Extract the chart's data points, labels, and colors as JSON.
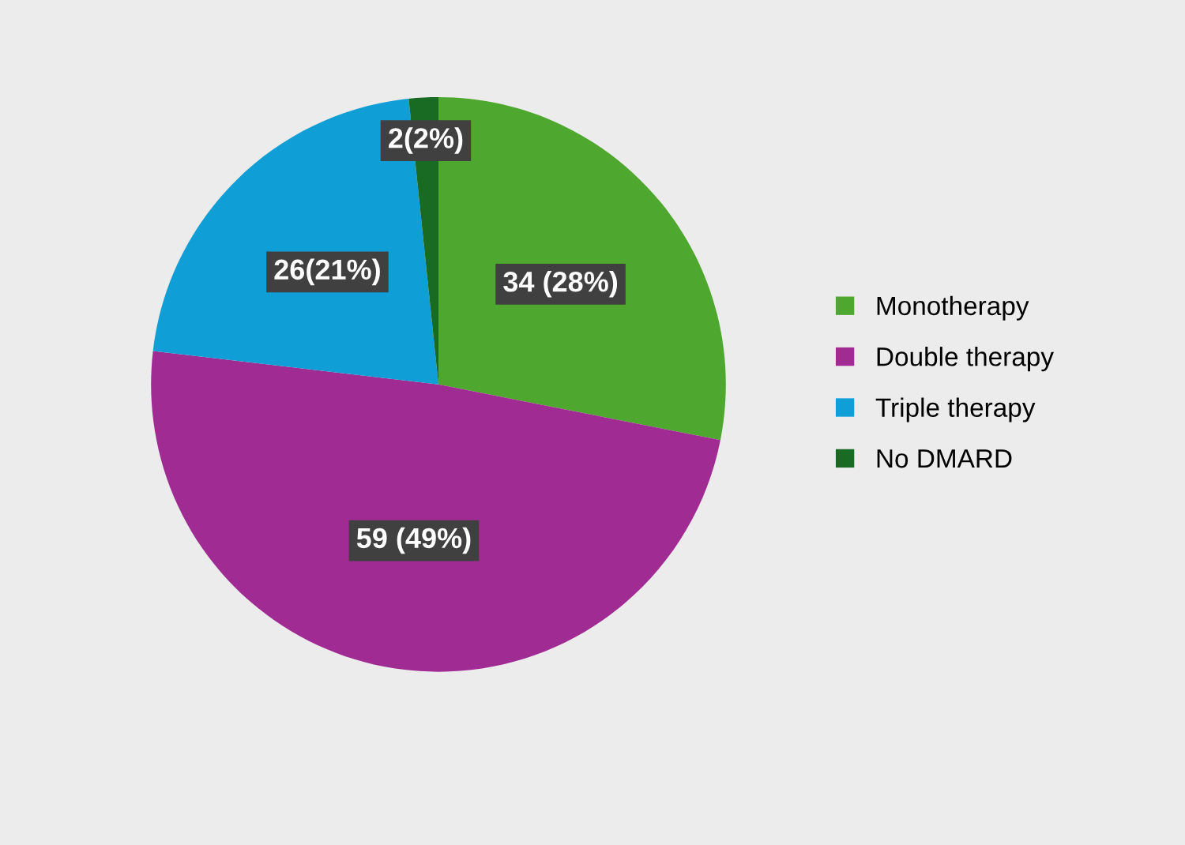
{
  "chart_data": {
    "type": "pie",
    "categories": [
      "Monotherapy",
      "Double therapy",
      "Triple therapy",
      "No DMARD"
    ],
    "values": [
      34,
      59,
      26,
      2
    ],
    "colors": [
      "#4ea72e",
      "#a02b93",
      "#0f9ed5",
      "#196b24"
    ],
    "value_labels": [
      "34 (28%)",
      "59 (49%)",
      "26(21%)",
      "2(2%)"
    ],
    "legend": "right"
  }
}
